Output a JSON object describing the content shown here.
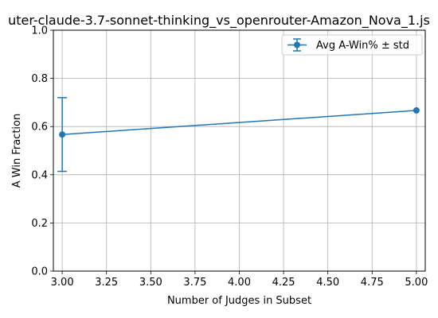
{
  "chart_data": {
    "type": "line",
    "title": "uter-claude-3.7-sonnet-thinking_vs_openrouter-Amazon_Nova_1.js",
    "xlabel": "Number of Judges in Subset",
    "ylabel": "A Win Fraction",
    "xlim": [
      2.95,
      5.05
    ],
    "ylim": [
      0.0,
      1.0
    ],
    "x_ticks": [
      "3.00",
      "3.25",
      "3.50",
      "3.75",
      "4.00",
      "4.25",
      "4.50",
      "4.75",
      "5.00"
    ],
    "y_ticks": [
      "0.0",
      "0.2",
      "0.4",
      "0.6",
      "0.8",
      "1.0"
    ],
    "grid": true,
    "legend_position": "top-right",
    "series": [
      {
        "name": "Avg A-Win% ± std",
        "color": "#1f77b4",
        "points": [
          {
            "x": 3.0,
            "y": 0.567,
            "err": 0.153
          },
          {
            "x": 5.0,
            "y": 0.667,
            "err": 0.0
          }
        ]
      }
    ]
  }
}
